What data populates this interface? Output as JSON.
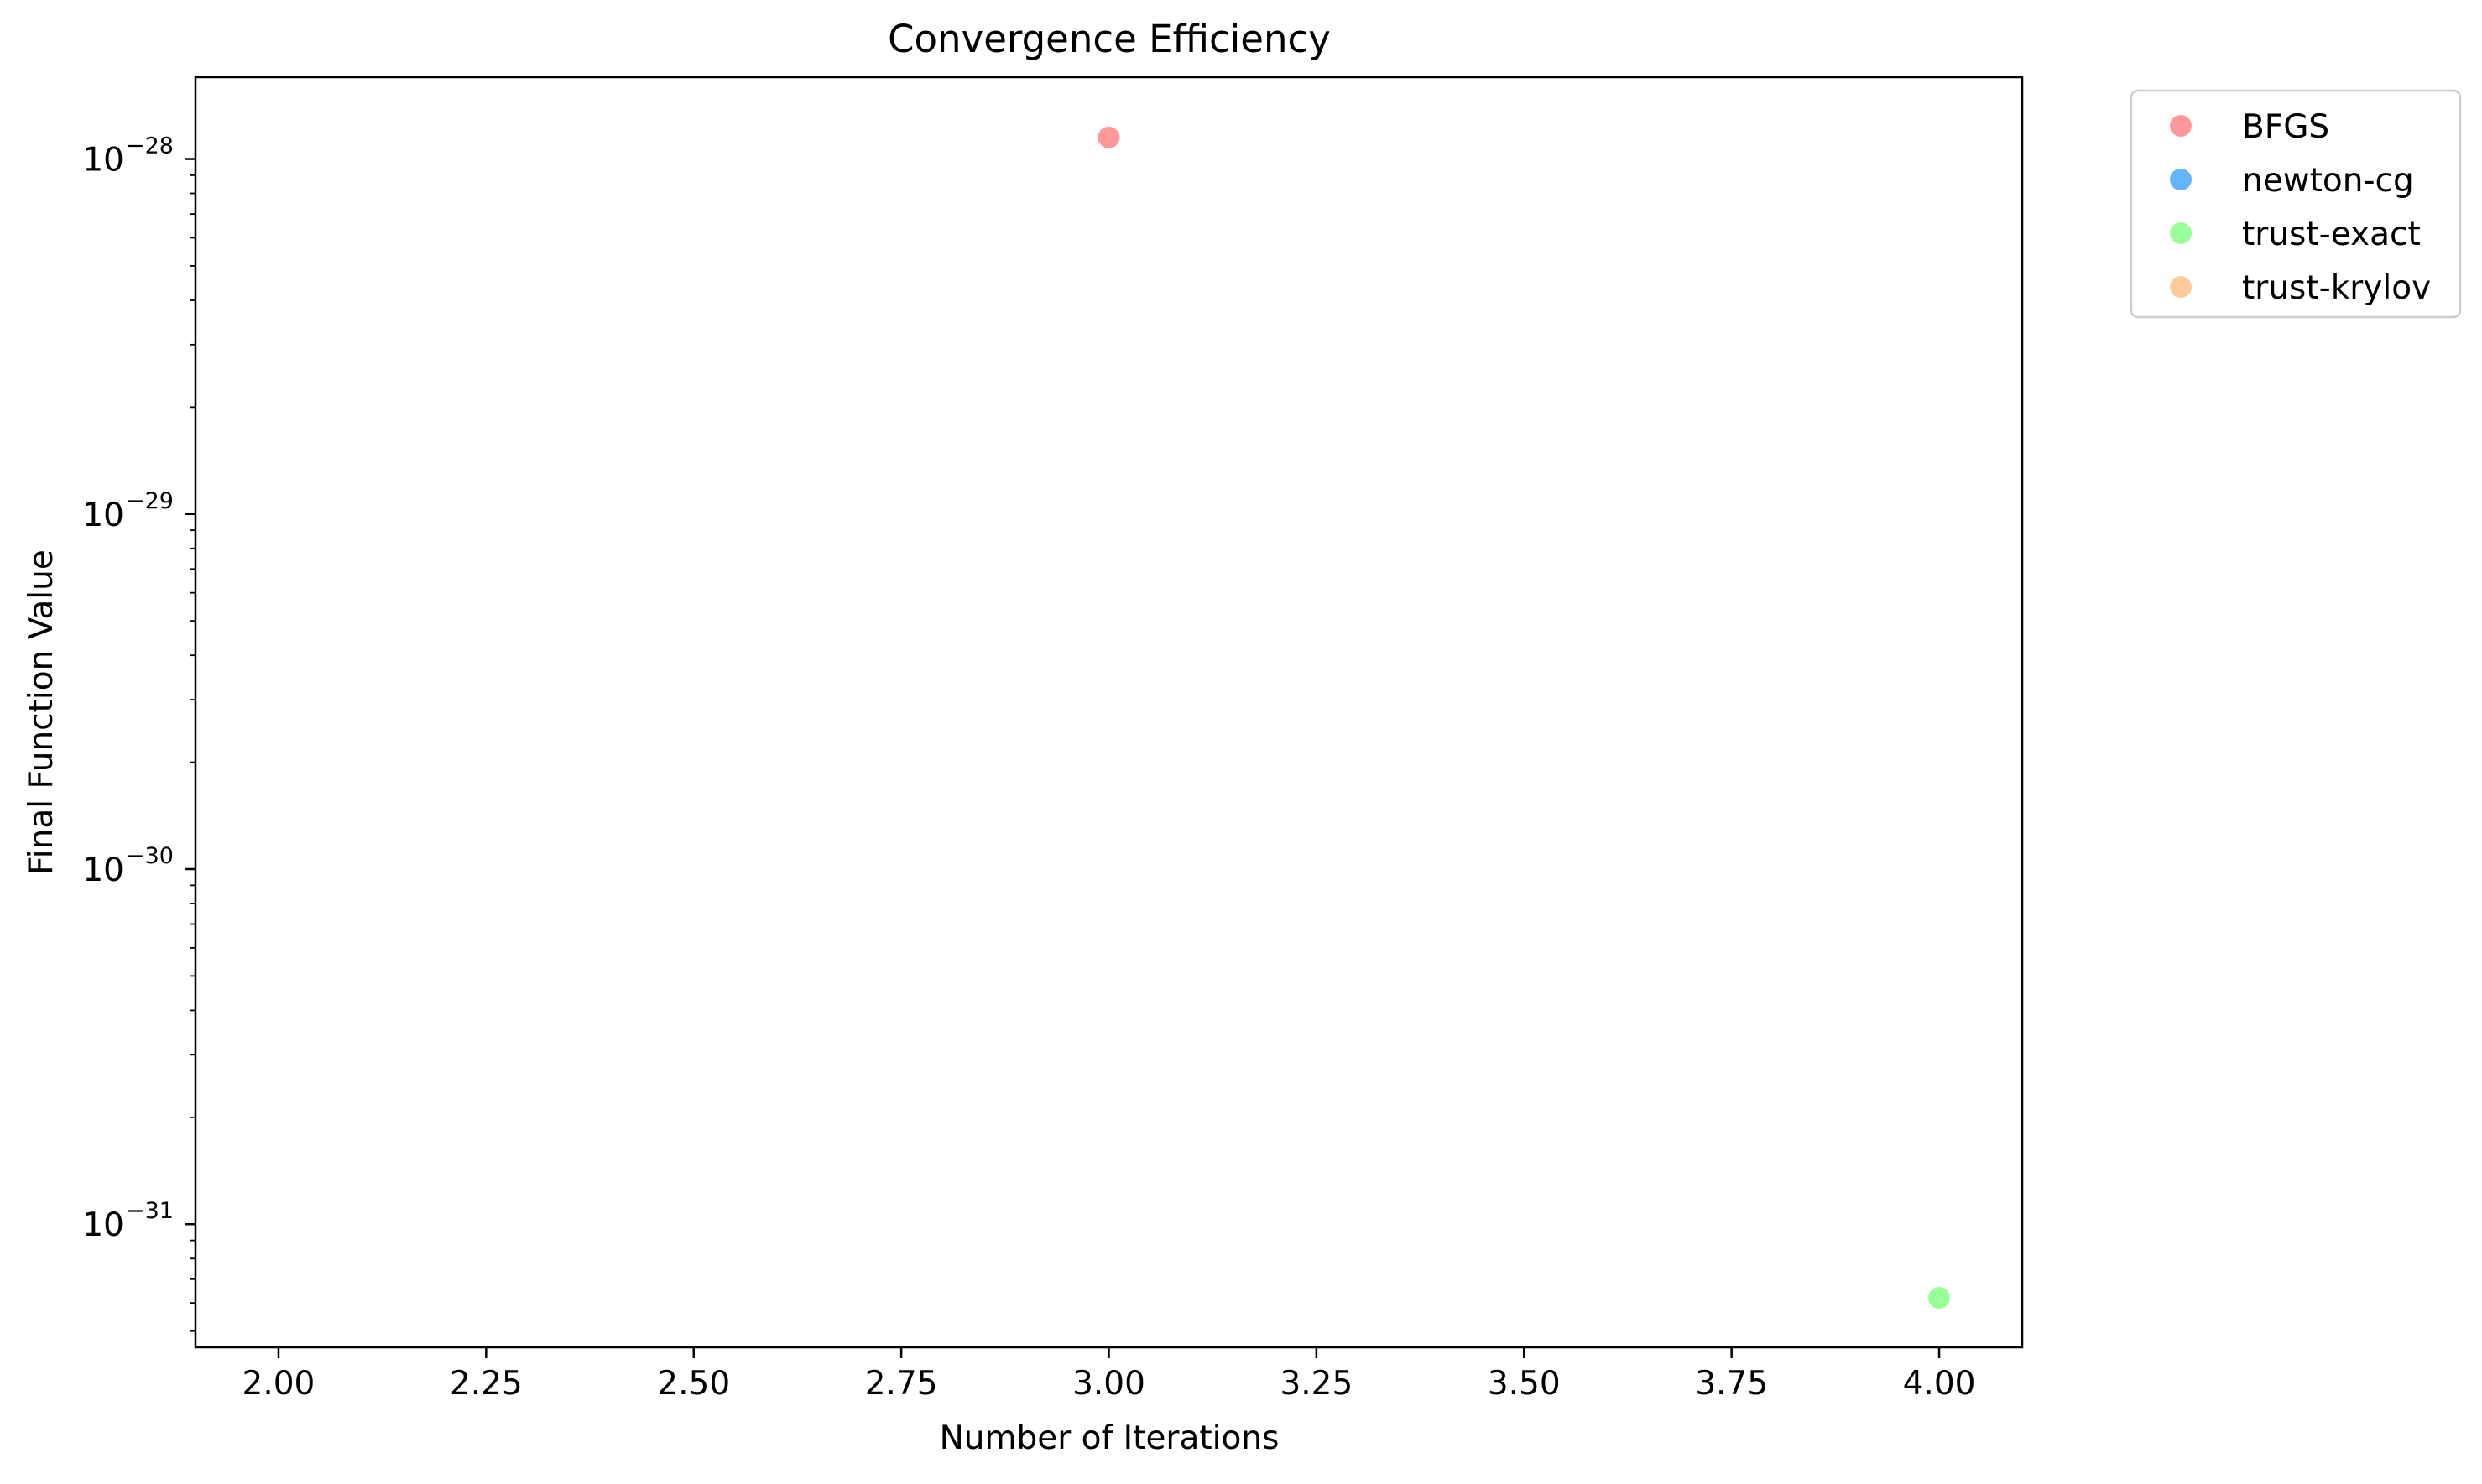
{
  "chart_data": {
    "type": "scatter",
    "title": "Convergence Efficiency",
    "xlabel": "Number of Iterations",
    "ylabel": "Final Function Value",
    "xlim": [
      1.9,
      4.1
    ],
    "ylim": [
      4.5e-32,
      1.7e-28
    ],
    "yscale": "log",
    "grid": false,
    "legend_position": "outside-top-right",
    "x_ticks": [
      2.0,
      2.25,
      2.5,
      2.75,
      3.0,
      3.25,
      3.5,
      3.75,
      4.0
    ],
    "x_tick_labels": [
      "2.00",
      "2.25",
      "2.50",
      "2.75",
      "3.00",
      "3.25",
      "3.50",
      "3.75",
      "4.00"
    ],
    "y_ticks": [
      1e-31,
      1e-30,
      1e-29,
      1e-28
    ],
    "y_tick_bases": [
      "10",
      "10",
      "10",
      "10"
    ],
    "y_tick_exponents": [
      "−31",
      "−30",
      "−29",
      "−28"
    ],
    "series": [
      {
        "name": "BFGS",
        "color": "#ff9999",
        "points": [
          {
            "x": 3,
            "y": 1.15e-28
          }
        ]
      },
      {
        "name": "newton-cg",
        "color": "#66b3ff",
        "points": []
      },
      {
        "name": "trust-exact",
        "color": "#99ff99",
        "points": [
          {
            "x": 4,
            "y": 6.2e-32
          }
        ]
      },
      {
        "name": "trust-krylov",
        "color": "#ffcc99",
        "points": []
      }
    ]
  }
}
